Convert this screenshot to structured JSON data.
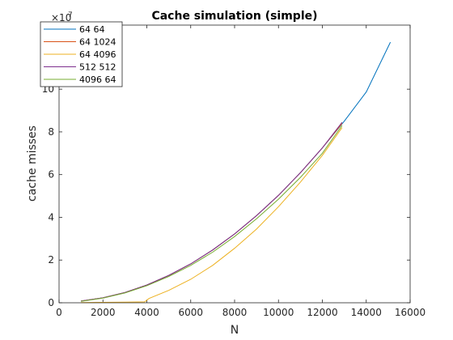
{
  "chart_data": {
    "type": "line",
    "title": "Cache simulation (simple)",
    "xlabel": "N",
    "ylabel": "cache misses",
    "xlim": [
      0,
      16000
    ],
    "ylim": [
      0,
      130000000
    ],
    "y_exponent_label": "×10",
    "y_exponent_power": "7",
    "x_ticks": [
      0,
      2000,
      4000,
      6000,
      8000,
      10000,
      12000,
      14000,
      16000
    ],
    "x_tick_labels": [
      "0",
      "2000",
      "4000",
      "6000",
      "8000",
      "10000",
      "12000",
      "14000",
      "16000"
    ],
    "y_ticks": [
      0,
      20000000,
      40000000,
      60000000,
      80000000,
      100000000
    ],
    "y_tick_labels": [
      "0",
      "2",
      "4",
      "6",
      "8",
      "10"
    ],
    "legend_position": "top-left",
    "grid": false,
    "series": [
      {
        "name": "64 64",
        "color": "#0072BD",
        "x": [
          1000,
          2000,
          3000,
          4000,
          5000,
          6000,
          7000,
          8000,
          9000,
          10000,
          11000,
          12000,
          13000,
          14000,
          15100
        ],
        "y": [
          800000,
          2300000,
          4800000,
          8300000,
          12800000,
          18200000,
          24700000,
          32200000,
          40800000,
          50300000,
          60900000,
          72500000,
          85000000,
          98700000,
          122000000
        ]
      },
      {
        "name": "64 1024",
        "color": "#D95319",
        "x": [
          1000,
          2000,
          3000,
          4000,
          5000,
          6000,
          7000,
          8000,
          9000,
          10000,
          11000,
          12000,
          12900
        ],
        "y": [
          800000,
          2300000,
          4800000,
          8300000,
          12800000,
          18200000,
          24700000,
          32200000,
          40800000,
          50300000,
          60900000,
          72500000,
          84000000
        ]
      },
      {
        "name": "64 4096",
        "color": "#EDB120",
        "x": [
          1000,
          2000,
          3000,
          3900,
          4100,
          5000,
          6000,
          7000,
          8000,
          9000,
          10000,
          11000,
          12000,
          12900
        ],
        "y": [
          100000,
          200000,
          300000,
          400000,
          2000000,
          5800000,
          11000000,
          17500000,
          25500000,
          34500000,
          45000000,
          56500000,
          69000000,
          82000000
        ]
      },
      {
        "name": "512 512",
        "color": "#7E2F8E",
        "x": [
          1000,
          2000,
          3000,
          4000,
          5000,
          6000,
          7000,
          8000,
          9000,
          10000,
          11000,
          12000,
          12900
        ],
        "y": [
          800000,
          2300000,
          4800000,
          8300000,
          12800000,
          18200000,
          24700000,
          32200000,
          40800000,
          50300000,
          60900000,
          72500000,
          84500000
        ]
      },
      {
        "name": "4096 64",
        "color": "#77AC30",
        "x": [
          1000,
          2000,
          3000,
          4000,
          5000,
          6000,
          7000,
          8000,
          9000,
          10000,
          11000,
          12000,
          12900
        ],
        "y": [
          700000,
          2200000,
          4600000,
          8000000,
          12300000,
          17500000,
          23700000,
          31000000,
          39300000,
          48500000,
          58700000,
          70000000,
          83000000
        ]
      }
    ]
  }
}
